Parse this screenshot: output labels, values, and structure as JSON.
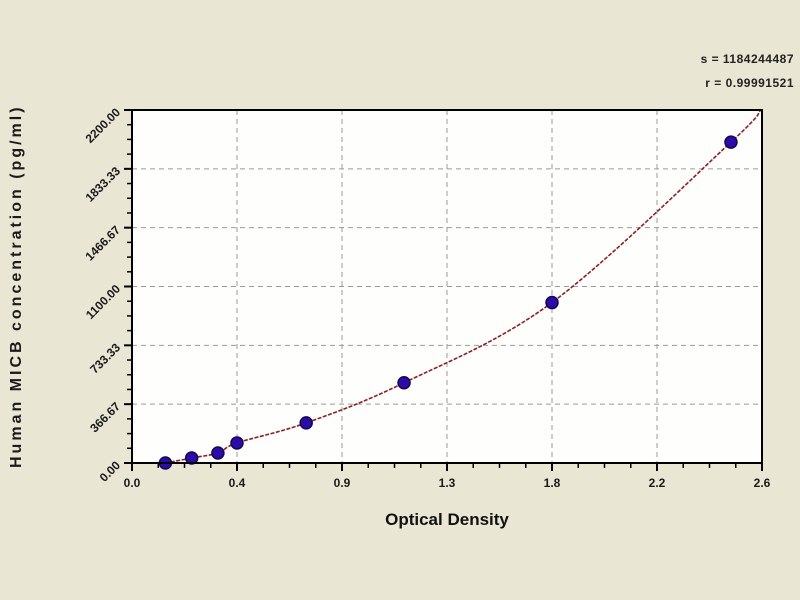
{
  "chart_data": {
    "type": "scatter",
    "title": "",
    "xlabel": "Optical Density",
    "ylabel": "Human MICB concentration (pg/ml)",
    "xlim": [
      0,
      2.64
    ],
    "ylim": [
      0,
      2200
    ],
    "x_tick_labels": [
      "0.0",
      "0.4",
      "0.9",
      "1.3",
      "1.8",
      "2.2",
      "2.6"
    ],
    "y_tick_labels": [
      "0.00",
      "366.67",
      "733.33",
      "1100.00",
      "1466.67",
      "1833.33",
      "2200.00"
    ],
    "minor_ticks_per_interval": 3,
    "grid": true,
    "legend": "none",
    "series": [
      {
        "name": "standard-points",
        "kind": "scatter",
        "x": [
          0.14,
          0.25,
          0.36,
          0.44,
          0.73,
          1.14,
          1.76,
          2.51
        ],
        "y": [
          0,
          31.25,
          62.5,
          125,
          250,
          500,
          1000,
          2000
        ]
      },
      {
        "name": "fit-curve",
        "kind": "line",
        "x": [
          0.14,
          0.25,
          0.36,
          0.44,
          0.73,
          1.14,
          1.76,
          2.51,
          2.635
        ],
        "y": [
          0,
          31.25,
          62.5,
          125,
          250,
          500,
          1000,
          2000,
          2200
        ]
      }
    ],
    "annotations": [
      {
        "text": "s = 1184244487"
      },
      {
        "text": "r = 0.99991521"
      }
    ],
    "colors": {
      "background": "#e9e6d4",
      "plot_background": "#fefefc",
      "border": "#000000",
      "grid": "#9a9a9a",
      "curve": "#8b2025",
      "point_fill": "#2a0da8",
      "point_stroke": "#180650",
      "text": "#1a1a1a"
    }
  }
}
